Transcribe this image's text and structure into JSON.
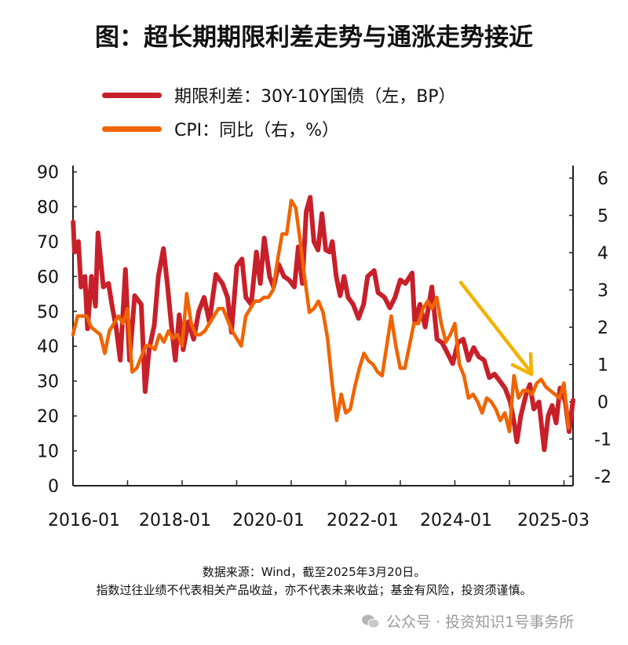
{
  "title": "图：超长期期限利差走势与通涨走势接近",
  "legend": [
    {
      "label": "期限利差：30Y-10Y国债（左，BP）",
      "color": "#c8202a"
    },
    {
      "label": "CPI：同比（右，%）",
      "color": "#f06400"
    }
  ],
  "footer": {
    "source": "数据来源：Wind，截至2025年3月20日。",
    "disclaimer": "指数过往业绩不代表相关产品收益，亦不代表未来收益；基金有风险，投资须谨慎。"
  },
  "watermark": {
    "icon": "wechat-icon",
    "text": "公众号 · 投资知识1号事务所"
  },
  "chart_data": {
    "type": "line",
    "x_range": [
      "2016-01",
      "2025-03"
    ],
    "x_tick_labels": [
      "2016-01",
      "2018-01",
      "2020-01",
      "2022-01",
      "2024-01",
      "2025-03"
    ],
    "y_left": {
      "ylim": [
        0,
        90
      ],
      "ticks": [
        0,
        10,
        20,
        30,
        40,
        50,
        60,
        70,
        80,
        90
      ]
    },
    "y_right": {
      "ylim": [
        -2,
        6
      ],
      "ticks": [
        -2,
        -1,
        0,
        1,
        2,
        3,
        4,
        5,
        6
      ]
    },
    "grid": false,
    "annotation": {
      "type": "arrow",
      "direction": "down-right",
      "color": "#f2b200"
    },
    "series": [
      {
        "name": "期限利差：30Y-10Y国债（左，BP）",
        "axis": "left",
        "color": "#c8202a",
        "points": [
          [
            "2016-01-02",
            75.6
          ],
          [
            "2016-01-11",
            67
          ],
          [
            "2016-02-07",
            70
          ],
          [
            "2016-02-24",
            57
          ],
          [
            "2016-03-20",
            60
          ],
          [
            "2016-04-07",
            45
          ],
          [
            "2016-05-03",
            60
          ],
          [
            "2016-05-29",
            51.5
          ],
          [
            "2016-06-16",
            72.5
          ],
          [
            "2016-07-21",
            57
          ],
          [
            "2016-08-25",
            58
          ],
          [
            "2016-09-21",
            51
          ],
          [
            "2016-10-17",
            45
          ],
          [
            "2016-11-13",
            36
          ],
          [
            "2016-12-17",
            62
          ],
          [
            "2017-01-14",
            36
          ],
          [
            "2017-02-18",
            54.5
          ],
          [
            "2017-04-01",
            52
          ],
          [
            "2017-04-27",
            27
          ],
          [
            "2017-05-23",
            39
          ],
          [
            "2017-06-27",
            46
          ],
          [
            "2017-07-24",
            60
          ],
          [
            "2017-08-28",
            68
          ],
          [
            "2017-09-24",
            57.6
          ],
          [
            "2017-10-20",
            46
          ],
          [
            "2017-11-16",
            36
          ],
          [
            "2017-12-12",
            49
          ],
          [
            "2018-01-08",
            39
          ],
          [
            "2018-02-12",
            47
          ],
          [
            "2018-03-17",
            42
          ],
          [
            "2018-04-21",
            50
          ],
          [
            "2018-05-26",
            54
          ],
          [
            "2018-07-01",
            47
          ],
          [
            "2018-08-14",
            60.6
          ],
          [
            "2018-09-27",
            58
          ],
          [
            "2018-11-01",
            54
          ],
          [
            "2018-11-27",
            44
          ],
          [
            "2019-01-02",
            63
          ],
          [
            "2019-02-06",
            65
          ],
          [
            "2019-03-02",
            54
          ],
          [
            "2019-04-07",
            52
          ],
          [
            "2019-05-11",
            67
          ],
          [
            "2019-06-07",
            58
          ],
          [
            "2019-07-03",
            71
          ],
          [
            "2019-08-08",
            60
          ],
          [
            "2019-09-04",
            57
          ],
          [
            "2019-10-08",
            63.5
          ],
          [
            "2019-11-13",
            60
          ],
          [
            "2019-12-17",
            59
          ],
          [
            "2020-01-22",
            57
          ],
          [
            "2020-02-18",
            68.5
          ],
          [
            "2020-03-14",
            58
          ],
          [
            "2020-04-10",
            78.6
          ],
          [
            "2020-05-06",
            82.7
          ],
          [
            "2020-06-01",
            70
          ],
          [
            "2020-06-28",
            67.6
          ],
          [
            "2020-07-24",
            78
          ],
          [
            "2020-08-19",
            67.6
          ],
          [
            "2020-09-15",
            67
          ],
          [
            "2020-10-02",
            70
          ],
          [
            "2020-10-28",
            60
          ],
          [
            "2020-11-24",
            54.5
          ],
          [
            "2020-12-20",
            60
          ],
          [
            "2021-01-16",
            54
          ],
          [
            "2021-02-20",
            52
          ],
          [
            "2021-03-25",
            48
          ],
          [
            "2021-04-29",
            52
          ],
          [
            "2021-05-25",
            60
          ],
          [
            "2021-07-08",
            61.7
          ],
          [
            "2021-08-04",
            55.4
          ],
          [
            "2021-09-17",
            54
          ],
          [
            "2021-10-22",
            51
          ],
          [
            "2021-11-26",
            54
          ],
          [
            "2022-01-01",
            59
          ],
          [
            "2022-02-05",
            58
          ],
          [
            "2022-03-19",
            61
          ],
          [
            "2022-04-06",
            47
          ],
          [
            "2022-05-11",
            52
          ],
          [
            "2022-06-15",
            45.5
          ],
          [
            "2022-07-29",
            57
          ],
          [
            "2022-09-03",
            42
          ],
          [
            "2022-10-07",
            41
          ],
          [
            "2022-11-12",
            38
          ],
          [
            "2022-12-17",
            35
          ],
          [
            "2023-01-21",
            41
          ],
          [
            "2023-02-26",
            42
          ],
          [
            "2023-04-01",
            36
          ],
          [
            "2023-05-05",
            39.6
          ],
          [
            "2023-06-09",
            37
          ],
          [
            "2023-07-14",
            36
          ],
          [
            "2023-08-18",
            31
          ],
          [
            "2023-09-23",
            32
          ],
          [
            "2023-10-28",
            30
          ],
          [
            "2023-12-02",
            28
          ],
          [
            "2024-01-07",
            24
          ],
          [
            "2024-02-02",
            18
          ],
          [
            "2024-02-20",
            12.6
          ],
          [
            "2024-03-16",
            20
          ],
          [
            "2024-04-20",
            26
          ],
          [
            "2024-05-16",
            29
          ],
          [
            "2024-06-12",
            22
          ],
          [
            "2024-07-16",
            24
          ],
          [
            "2024-08-21",
            10.3
          ],
          [
            "2024-09-17",
            20
          ],
          [
            "2024-10-13",
            23
          ],
          [
            "2024-11-09",
            18
          ],
          [
            "2024-12-05",
            28
          ],
          [
            "2025-01-10",
            24
          ],
          [
            "2025-02-05",
            15.5
          ],
          [
            "2025-03-01",
            24.5
          ]
        ]
      },
      {
        "name": "CPI：同比（右，%）",
        "axis": "right",
        "color": "#f06400",
        "points": [
          [
            "2016-01",
            1.8
          ],
          [
            "2016-02",
            2.3
          ],
          [
            "2016-03",
            2.3
          ],
          [
            "2016-04",
            2.3
          ],
          [
            "2016-05",
            2.0
          ],
          [
            "2016-06",
            1.9
          ],
          [
            "2016-07",
            1.8
          ],
          [
            "2016-08",
            1.3
          ],
          [
            "2016-09",
            1.9
          ],
          [
            "2016-10",
            2.1
          ],
          [
            "2016-11",
            2.3
          ],
          [
            "2016-12",
            2.1
          ],
          [
            "2017-01",
            2.5
          ],
          [
            "2017-02",
            0.8
          ],
          [
            "2017-03",
            0.9
          ],
          [
            "2017-04",
            1.2
          ],
          [
            "2017-05",
            1.5
          ],
          [
            "2017-06",
            1.5
          ],
          [
            "2017-07",
            1.4
          ],
          [
            "2017-08",
            1.8
          ],
          [
            "2017-09",
            1.6
          ],
          [
            "2017-10",
            1.9
          ],
          [
            "2017-11",
            1.7
          ],
          [
            "2017-12",
            1.8
          ],
          [
            "2018-01",
            1.5
          ],
          [
            "2018-02",
            2.9
          ],
          [
            "2018-03",
            2.1
          ],
          [
            "2018-04",
            1.8
          ],
          [
            "2018-05",
            1.8
          ],
          [
            "2018-06",
            1.9
          ],
          [
            "2018-07",
            2.1
          ],
          [
            "2018-08",
            2.3
          ],
          [
            "2018-09",
            2.5
          ],
          [
            "2018-10",
            2.5
          ],
          [
            "2018-11",
            2.2
          ],
          [
            "2018-12",
            1.9
          ],
          [
            "2019-01",
            1.7
          ],
          [
            "2019-02",
            1.5
          ],
          [
            "2019-03",
            2.3
          ],
          [
            "2019-04",
            2.5
          ],
          [
            "2019-05",
            2.7
          ],
          [
            "2019-06",
            2.7
          ],
          [
            "2019-07",
            2.8
          ],
          [
            "2019-08",
            2.8
          ],
          [
            "2019-09",
            3.0
          ],
          [
            "2019-10",
            3.8
          ],
          [
            "2019-11",
            4.5
          ],
          [
            "2019-12",
            4.5
          ],
          [
            "2020-01",
            5.4
          ],
          [
            "2020-02",
            5.2
          ],
          [
            "2020-03",
            4.3
          ],
          [
            "2020-04",
            3.3
          ],
          [
            "2020-05",
            2.4
          ],
          [
            "2020-06",
            2.5
          ],
          [
            "2020-07",
            2.7
          ],
          [
            "2020-08",
            2.4
          ],
          [
            "2020-09",
            1.7
          ],
          [
            "2020-10",
            0.5
          ],
          [
            "2020-11",
            -0.5
          ],
          [
            "2020-12",
            0.2
          ],
          [
            "2021-01",
            -0.3
          ],
          [
            "2021-02",
            -0.2
          ],
          [
            "2021-03",
            0.4
          ],
          [
            "2021-04",
            0.9
          ],
          [
            "2021-05",
            1.3
          ],
          [
            "2021-06",
            1.1
          ],
          [
            "2021-07",
            1.0
          ],
          [
            "2021-08",
            0.8
          ],
          [
            "2021-09",
            0.7
          ],
          [
            "2021-10",
            1.5
          ],
          [
            "2021-11",
            2.3
          ],
          [
            "2021-12",
            1.5
          ],
          [
            "2022-01",
            0.9
          ],
          [
            "2022-02",
            0.9
          ],
          [
            "2022-03",
            1.5
          ],
          [
            "2022-04",
            2.1
          ],
          [
            "2022-05",
            2.1
          ],
          [
            "2022-06",
            2.5
          ],
          [
            "2022-07",
            2.7
          ],
          [
            "2022-08",
            2.5
          ],
          [
            "2022-09",
            2.8
          ],
          [
            "2022-10",
            2.1
          ],
          [
            "2022-11",
            1.6
          ],
          [
            "2022-12",
            1.8
          ],
          [
            "2023-01",
            2.1
          ],
          [
            "2023-02",
            1.0
          ],
          [
            "2023-03",
            0.7
          ],
          [
            "2023-04",
            0.1
          ],
          [
            "2023-05",
            0.2
          ],
          [
            "2023-06",
            0.0
          ],
          [
            "2023-07",
            -0.3
          ],
          [
            "2023-08",
            0.1
          ],
          [
            "2023-09",
            0.0
          ],
          [
            "2023-10",
            -0.2
          ],
          [
            "2023-11",
            -0.5
          ],
          [
            "2023-12",
            -0.3
          ],
          [
            "2024-01",
            -0.8
          ],
          [
            "2024-02",
            0.7
          ],
          [
            "2024-03",
            0.1
          ],
          [
            "2024-04",
            0.3
          ],
          [
            "2024-05",
            0.3
          ],
          [
            "2024-06",
            0.2
          ],
          [
            "2024-07",
            0.5
          ],
          [
            "2024-08",
            0.6
          ],
          [
            "2024-09",
            0.4
          ],
          [
            "2024-10",
            0.3
          ],
          [
            "2024-11",
            0.2
          ],
          [
            "2024-12",
            0.1
          ],
          [
            "2025-01",
            0.5
          ],
          [
            "2025-02",
            -0.7
          ]
        ]
      }
    ]
  }
}
